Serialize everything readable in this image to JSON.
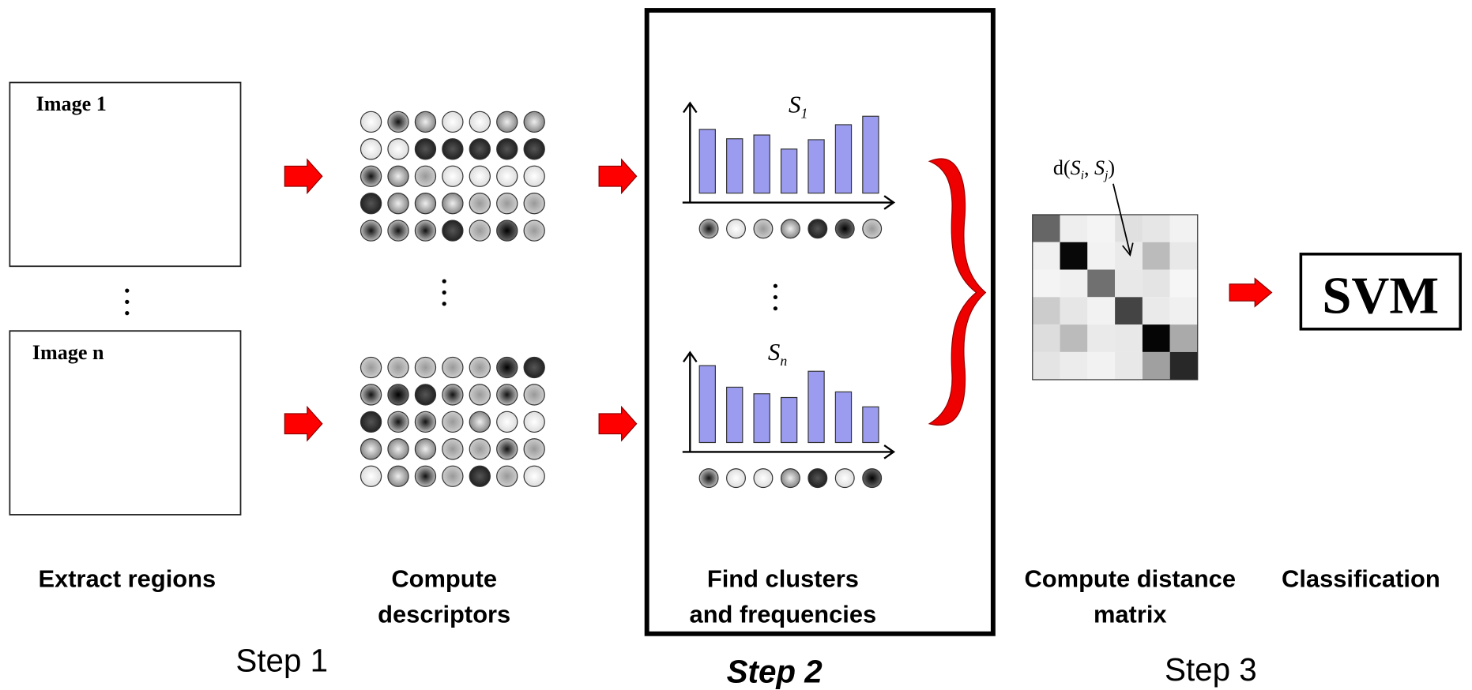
{
  "images": [
    "Image 1",
    "Image n"
  ],
  "stages": [
    {
      "lines": [
        "Extract regions"
      ]
    },
    {
      "lines": [
        "Compute",
        "descriptors"
      ]
    },
    {
      "lines": [
        "Find clusters",
        "and frequencies"
      ]
    },
    {
      "lines": [
        "Compute distance",
        "matrix"
      ]
    },
    {
      "lines": [
        "Classification"
      ]
    }
  ],
  "steps": [
    "Step 1",
    "Step 2",
    "Step 3"
  ],
  "histograms": [
    {
      "symbol": "S",
      "subscript": "1"
    },
    {
      "symbol": "S",
      "subscript": "n"
    }
  ],
  "distance": {
    "prefix": "d(",
    "a": "S",
    "a_sub": "i",
    "sep": ", ",
    "b": "S",
    "b_sub": "j",
    "suffix": ")"
  },
  "classifier": "SVM"
}
